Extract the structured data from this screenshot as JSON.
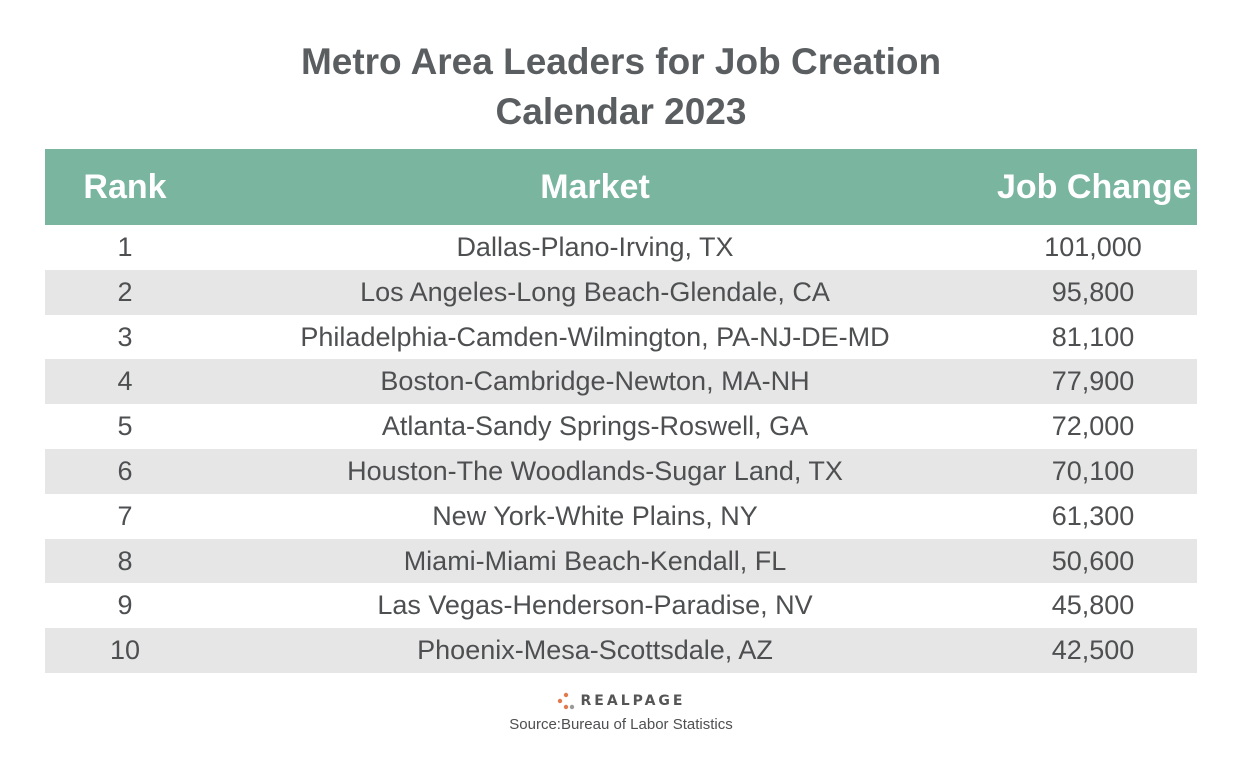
{
  "chart_data": {
    "type": "table",
    "title": "Metro Area Leaders for Job Creation",
    "subtitle": "Calendar 2023",
    "columns": [
      "Rank",
      "Market",
      "Job Change"
    ],
    "rows": [
      {
        "rank": "1",
        "market": "Dallas-Plano-Irving, TX",
        "job_change": "101,000"
      },
      {
        "rank": "2",
        "market": "Los Angeles-Long Beach-Glendale, CA",
        "job_change": "95,800"
      },
      {
        "rank": "3",
        "market": "Philadelphia-Camden-Wilmington, PA-NJ-DE-MD",
        "job_change": "81,100"
      },
      {
        "rank": "4",
        "market": "Boston-Cambridge-Newton, MA-NH",
        "job_change": "77,900"
      },
      {
        "rank": "5",
        "market": "Atlanta-Sandy Springs-Roswell, GA",
        "job_change": "72,000"
      },
      {
        "rank": "6",
        "market": "Houston-The Woodlands-Sugar Land, TX",
        "job_change": "70,100"
      },
      {
        "rank": "7",
        "market": "New York-White Plains, NY",
        "job_change": "61,300"
      },
      {
        "rank": "8",
        "market": "Miami-Miami Beach-Kendall, FL",
        "job_change": "50,600"
      },
      {
        "rank": "9",
        "market": "Las Vegas-Henderson-Paradise, NV",
        "job_change": "45,800"
      },
      {
        "rank": "10",
        "market": "Phoenix-Mesa-Scottsdale, AZ",
        "job_change": "42,500"
      }
    ]
  },
  "brand": {
    "logo_text": "REALPAGE",
    "logo_icon": "realpage-dots-icon",
    "accent": "#e07a4f"
  },
  "source": "Source:Bureau of Labor Statistics",
  "colors": {
    "header_bg": "#7ab5a0",
    "header_text": "#ffffff",
    "alt_row_bg": "#e6e6e6",
    "title_text": "#5b5e60",
    "body_text": "#4d4f51"
  }
}
